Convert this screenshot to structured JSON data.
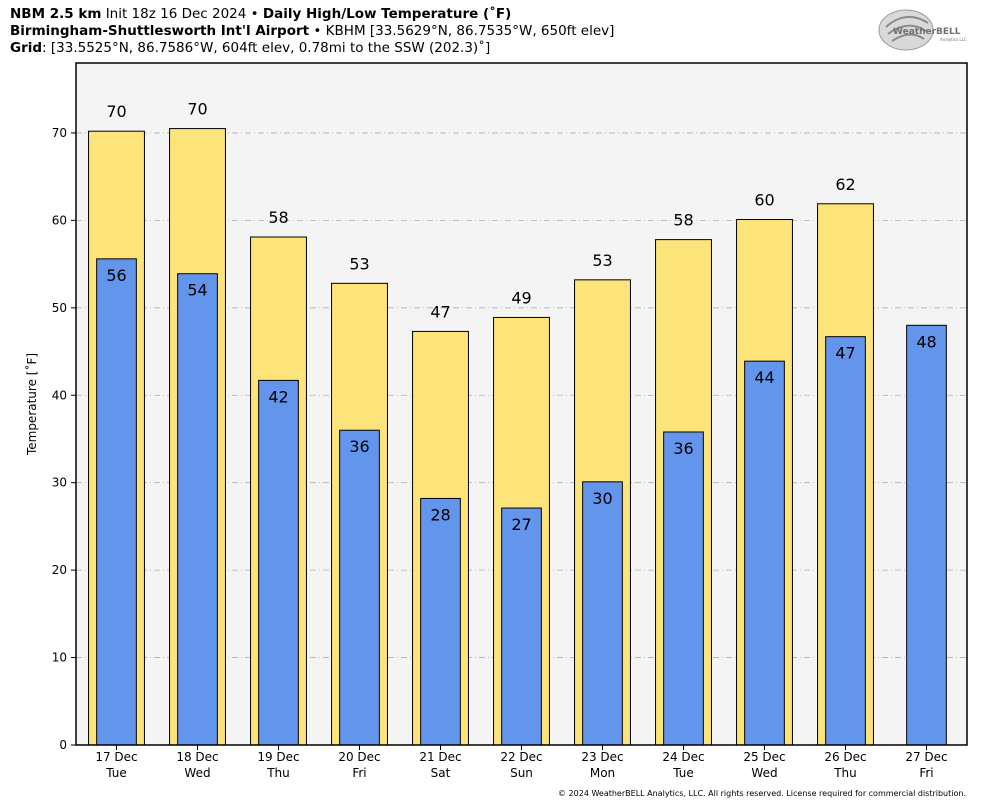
{
  "header": {
    "model": "NBM 2.5 km",
    "init": "Init 18z 16 Dec 2024",
    "sep": "•",
    "title": "Daily High/Low Temperature (˚F)",
    "station_name": "Birmingham-Shuttlesworth Int'l Airport",
    "station_info": "KBHM [33.5629°N, 86.7535°W, 650ft elev]",
    "grid_label": "Grid",
    "grid_info": ": [33.5525°N, 86.7586°W, 604ft elev, 0.78mi to the SSW (202.3)˚]"
  },
  "logo": {
    "text": "WeatherBELL",
    "sub": "Analytics LLC"
  },
  "copyright": "© 2024 WeatherBELL Analytics, LLC. All rights reserved. License required for commercial distribution.",
  "colors": {
    "high": "#fde47a",
    "low": "#6495ed",
    "plot_bg": "#f4f4f4",
    "grid": "#b0b0b0"
  },
  "chart_data": {
    "type": "bar",
    "ylabel": "Temperature [˚F]",
    "ylim": [
      0,
      78
    ],
    "yticks": [
      0,
      10,
      20,
      30,
      40,
      50,
      60,
      70
    ],
    "grid": true,
    "categories": [
      {
        "date": "17 Dec",
        "day": "Tue"
      },
      {
        "date": "18 Dec",
        "day": "Wed"
      },
      {
        "date": "19 Dec",
        "day": "Thu"
      },
      {
        "date": "20 Dec",
        "day": "Fri"
      },
      {
        "date": "21 Dec",
        "day": "Sat"
      },
      {
        "date": "22 Dec",
        "day": "Sun"
      },
      {
        "date": "23 Dec",
        "day": "Mon"
      },
      {
        "date": "24 Dec",
        "day": "Tue"
      },
      {
        "date": "25 Dec",
        "day": "Wed"
      },
      {
        "date": "26 Dec",
        "day": "Thu"
      },
      {
        "date": "27 Dec",
        "day": "Fri"
      }
    ],
    "series": [
      {
        "values": [
          70.2,
          70.5,
          58.1,
          52.8,
          47.3,
          48.9,
          53.2,
          57.8,
          60.1,
          61.9,
          null
        ],
        "labels": [
          "70",
          "70",
          "58",
          "53",
          "47",
          "49",
          "53",
          "58",
          "60",
          "62",
          ""
        ]
      },
      {
        "values": [
          55.6,
          53.9,
          41.7,
          36.0,
          28.2,
          27.1,
          30.1,
          35.8,
          43.9,
          46.7,
          48.0
        ],
        "labels": [
          "56",
          "54",
          "42",
          "36",
          "28",
          "27",
          "30",
          "36",
          "44",
          "47",
          "48"
        ]
      }
    ]
  }
}
